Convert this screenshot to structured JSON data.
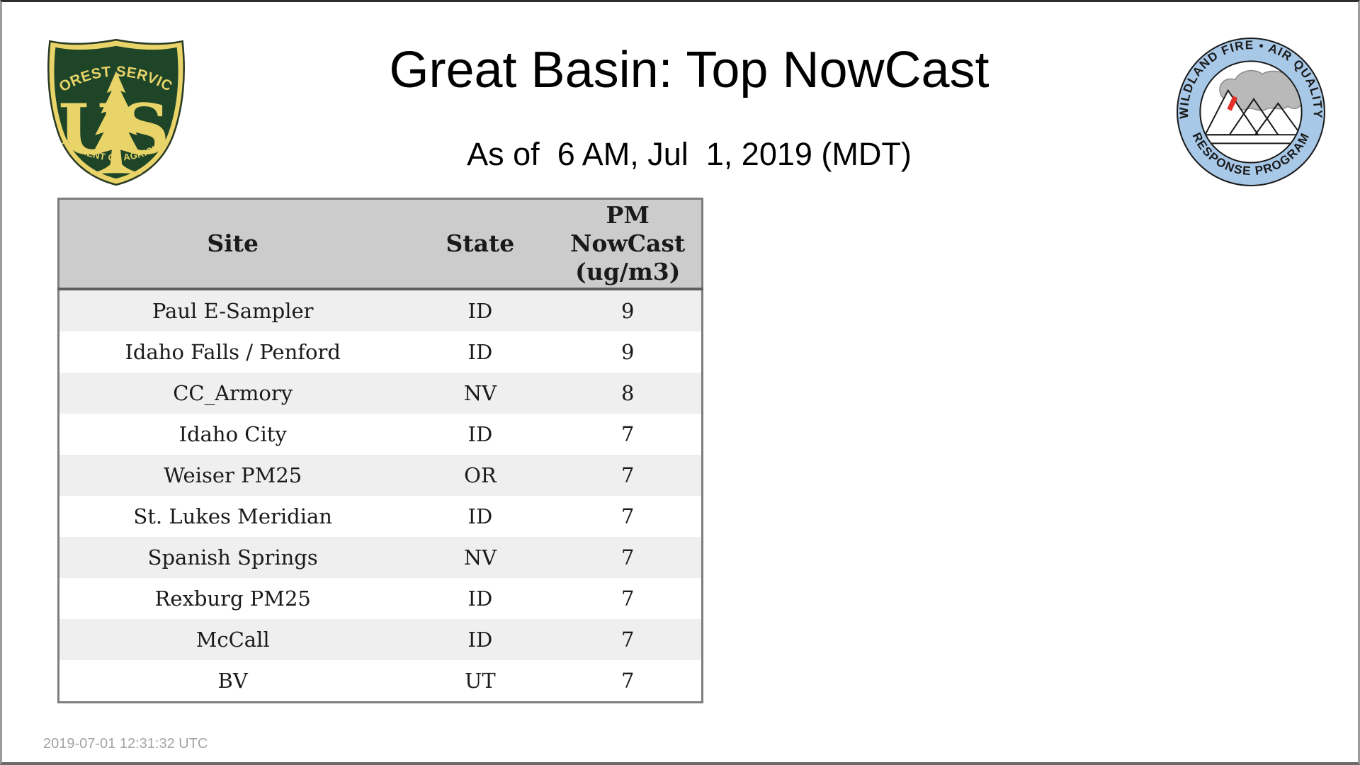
{
  "page": {
    "title": "Great Basin: Top NowCast",
    "subtitle": "As of  6 AM, Jul  1, 2019 (MDT)",
    "footer_timestamp": "2019-07-01 12:31:32 UTC"
  },
  "logos": {
    "forest_service": {
      "top_text": "FOREST SERVICE",
      "us_left": "U",
      "us_right": "S",
      "bottom_text": "DEPARTMENT OF AGRICULTURE",
      "green": "#1e4527",
      "gold": "#e9d469"
    },
    "airfire_badge": {
      "top_text": "WILDLAND FIRE • AIR QUALITY",
      "bottom_text": "RESPONSE PROGRAM",
      "ring_color": "#a8c8e8",
      "smoke_color": "#b9b9b9",
      "flame_color": "#e43027"
    }
  },
  "table": {
    "columns": [
      "Site",
      "State",
      "PM\nNowCast\n(ug/m3)"
    ],
    "rows": [
      {
        "site": "Paul E-Sampler",
        "state": "ID",
        "value": "9"
      },
      {
        "site": "Idaho Falls / Penford",
        "state": "ID",
        "value": "9"
      },
      {
        "site": "CC_Armory",
        "state": "NV",
        "value": "8"
      },
      {
        "site": "Idaho City",
        "state": "ID",
        "value": "7"
      },
      {
        "site": "Weiser PM25",
        "state": "OR",
        "value": "7"
      },
      {
        "site": "St. Lukes Meridian",
        "state": "ID",
        "value": "7"
      },
      {
        "site": "Spanish Springs",
        "state": "NV",
        "value": "7"
      },
      {
        "site": "Rexburg PM25",
        "state": "ID",
        "value": "7"
      },
      {
        "site": "McCall",
        "state": "ID",
        "value": "7"
      },
      {
        "site": "BV",
        "state": "UT",
        "value": "7"
      }
    ],
    "colors": {
      "header_bg": "#cccccc",
      "row_odd_bg": "#efefef",
      "row_even_bg": "#ffffff",
      "outer_border": "#7d7d7d",
      "header_rule": "#5e5e5e"
    }
  }
}
